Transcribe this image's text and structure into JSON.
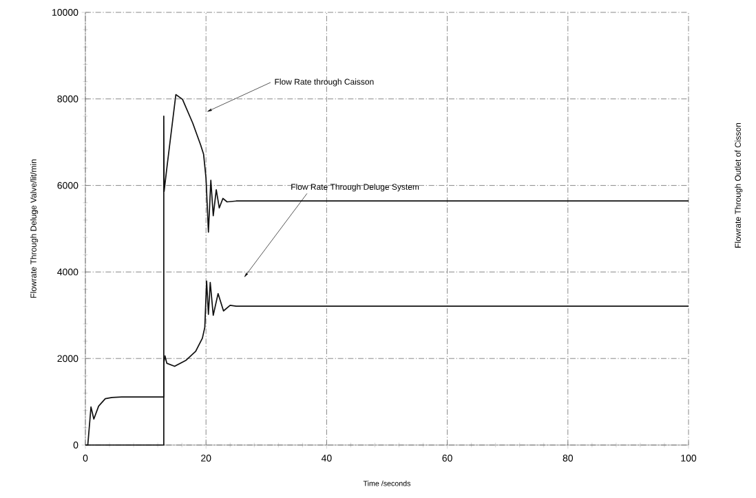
{
  "chart_data": {
    "type": "line",
    "xlabel": "Time /seconds",
    "ylabel": "Flowrate Through Deluge Valve/lit/min",
    "xlim": [
      0,
      100
    ],
    "ylim": [
      0,
      10000
    ],
    "xticks": [
      0,
      20,
      40,
      60,
      80,
      100
    ],
    "yticks": [
      0,
      2000,
      4000,
      6000,
      8000,
      10000
    ],
    "grid": true,
    "marker": "none",
    "line_style": "solid",
    "series": [
      {
        "color": "#111111",
        "x": [
          0,
          13,
          13,
          13.05,
          13.6,
          15.0,
          16.1,
          17.8,
          19.1,
          19.6,
          20.0,
          20.4,
          20.8,
          21.2,
          21.7,
          22.2,
          22.8,
          23.5,
          25,
          40,
          100
        ],
        "values": [
          0,
          0,
          7600,
          5860,
          6510,
          8100,
          7990,
          7440,
          6940,
          6720,
          6170,
          4920,
          6120,
          5300,
          5900,
          5480,
          5700,
          5620,
          5640,
          5640,
          5640
        ]
      },
      {
        "color": "#111111",
        "x": [
          0,
          0.4,
          0.93,
          1.4,
          2.2,
          3.3,
          4.4,
          6,
          13,
          13,
          13.2,
          13.5,
          14.8,
          16.7,
          18.3,
          19.4,
          19.8,
          20.0,
          20.1,
          20.4,
          20.7,
          21.2,
          22.0,
          22.9,
          24,
          25,
          40,
          100
        ],
        "values": [
          0,
          0,
          880,
          600,
          900,
          1070,
          1100,
          1110,
          1110,
          1900,
          2060,
          1890,
          1820,
          1960,
          2170,
          2470,
          2720,
          3440,
          3790,
          3020,
          3760,
          3000,
          3500,
          3100,
          3230,
          3210,
          3210,
          3210
        ]
      }
    ],
    "annotations": [
      "Flow Rate through Caisson",
      "Flow Rate Through Deluge System",
      "Flowrate Through Outlet of Cisson"
    ]
  }
}
